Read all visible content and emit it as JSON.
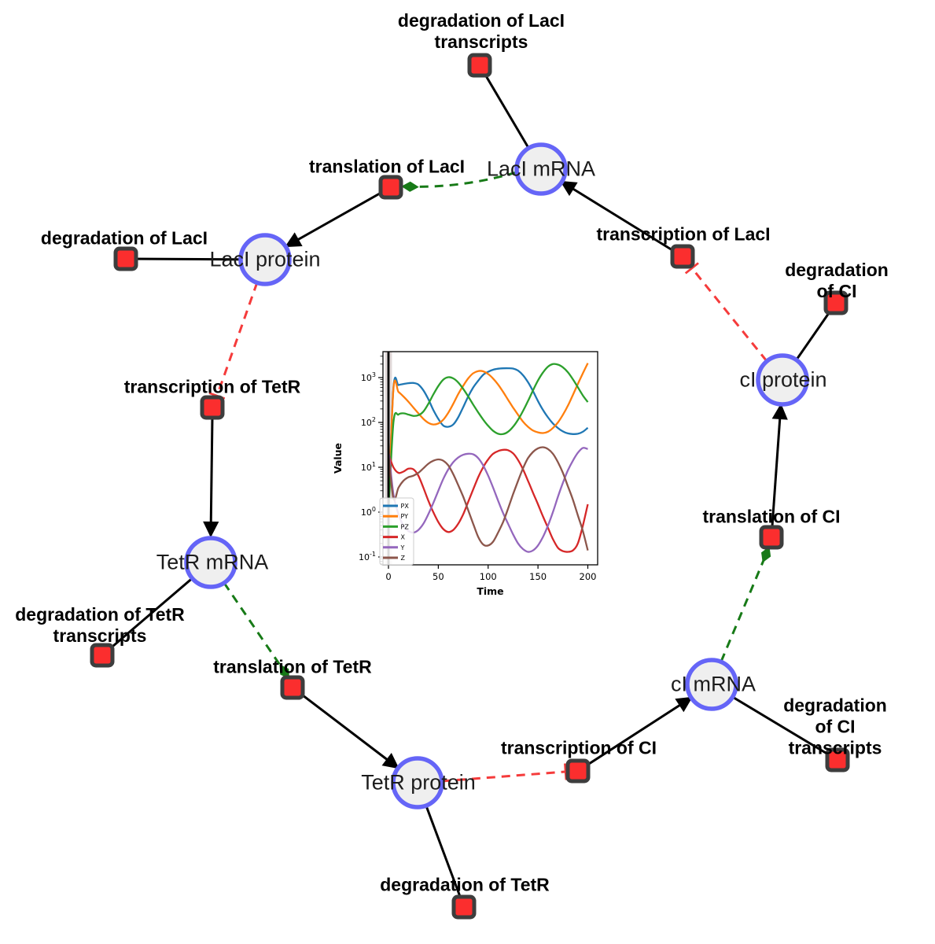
{
  "diagram": {
    "species": [
      {
        "label": "LacI mRNA"
      },
      {
        "label": "LacI protein"
      },
      {
        "label": "TetR mRNA"
      },
      {
        "label": "TetR protein"
      },
      {
        "label": "cI mRNA"
      },
      {
        "label": "cI protein"
      }
    ],
    "reactions": [
      {
        "label": "degradation of LacI\ntranscripts"
      },
      {
        "label": "translation of LacI"
      },
      {
        "label": "transcription of LacI"
      },
      {
        "label": "degradation of LacI"
      },
      {
        "label": "transcription of TetR"
      },
      {
        "label": "degradation of CI"
      },
      {
        "label": "degradation of TetR\ntranscripts"
      },
      {
        "label": "translation of TetR"
      },
      {
        "label": "translation of CI"
      },
      {
        "label": "transcription of CI"
      },
      {
        "label": "degradation of TetR"
      },
      {
        "label": "degradation of CI\ntranscripts"
      }
    ]
  },
  "colors": {
    "species_fill": "#efefef",
    "species_border": "#6565f7",
    "reaction_fill": "#fb2e2e",
    "reaction_border": "#3d3d3d",
    "edge_black": "#000000",
    "modifier_green": "#177a17",
    "inhibition_red": "#f53b3b"
  },
  "chart_data": {
    "type": "line",
    "title": "",
    "xlabel": "Time",
    "ylabel": "Value",
    "x_range": [
      0,
      200
    ],
    "x_ticks": [
      0,
      50,
      100,
      150,
      200
    ],
    "y_scale": "log",
    "y_tick_exponents": [
      -1,
      0,
      1,
      2,
      3
    ],
    "ylim_exponents": [
      -1.17,
      3.58
    ],
    "grid": false,
    "legend_position": "lower left",
    "annotations": {
      "vline_x": 0
    },
    "x": [
      0,
      5,
      10,
      15,
      20,
      25,
      30,
      35,
      40,
      45,
      50,
      55,
      60,
      65,
      70,
      75,
      80,
      85,
      90,
      95,
      100,
      105,
      110,
      115,
      120,
      125,
      130,
      135,
      140,
      145,
      150,
      155,
      160,
      165,
      170,
      175,
      180,
      185,
      190,
      195,
      200
    ],
    "series": [
      {
        "name": "PX",
        "color": "#1f77b4",
        "values": [
          1,
          600,
          680,
          720,
          750,
          760,
          700,
          520,
          330,
          190,
          120,
          85,
          80,
          90,
          130,
          220,
          380,
          600,
          850,
          1150,
          1350,
          1500,
          1580,
          1610,
          1620,
          1590,
          1430,
          1130,
          790,
          500,
          300,
          190,
          130,
          95,
          75,
          63,
          57,
          55,
          56,
          62,
          76
        ]
      },
      {
        "name": "PY",
        "color": "#ff7f0e",
        "values": [
          1,
          560,
          480,
          380,
          290,
          215,
          160,
          120,
          98,
          90,
          95,
          115,
          165,
          260,
          430,
          660,
          960,
          1250,
          1400,
          1380,
          1200,
          950,
          700,
          480,
          320,
          215,
          148,
          104,
          80,
          66,
          60,
          58,
          62,
          75,
          100,
          148,
          235,
          410,
          720,
          1250,
          2100
        ]
      },
      {
        "name": "PZ",
        "color": "#2ca02c",
        "values": [
          1,
          100,
          150,
          160,
          150,
          140,
          145,
          175,
          260,
          420,
          650,
          900,
          1020,
          960,
          780,
          560,
          380,
          250,
          168,
          116,
          84,
          65,
          56,
          55,
          62,
          80,
          115,
          180,
          300,
          520,
          860,
          1300,
          1750,
          2000,
          1950,
          1700,
          1320,
          920,
          610,
          400,
          285
        ]
      },
      {
        "name": "X",
        "color": "#d62728",
        "values": [
          20,
          10,
          7.5,
          8,
          9.3,
          9,
          6.5,
          3.5,
          1.8,
          1,
          0.6,
          0.42,
          0.36,
          0.4,
          0.55,
          0.9,
          1.7,
          3.2,
          6,
          10,
          15,
          20,
          23,
          24.5,
          24,
          20.5,
          14.5,
          9,
          5,
          2.7,
          1.5,
          0.8,
          0.45,
          0.25,
          0.16,
          0.135,
          0.13,
          0.14,
          0.2,
          0.5,
          1.5
        ]
      },
      {
        "name": "Y",
        "color": "#9467bd",
        "values": [
          25,
          2.5,
          0.9,
          0.5,
          0.38,
          0.35,
          0.4,
          0.55,
          0.9,
          1.6,
          3,
          5.5,
          9,
          13,
          16.5,
          19,
          20,
          19.5,
          16,
          11,
          6.5,
          3.5,
          1.8,
          0.95,
          0.55,
          0.32,
          0.2,
          0.15,
          0.13,
          0.14,
          0.18,
          0.28,
          0.5,
          1,
          2.2,
          4.5,
          8.5,
          14,
          21,
          27,
          25.5
        ]
      },
      {
        "name": "Z",
        "color": "#8c564b",
        "values": [
          20,
          2,
          3.5,
          5,
          6,
          6.5,
          7.5,
          9.5,
          12,
          14,
          15,
          14,
          11,
          7,
          4,
          2.2,
          1.1,
          0.55,
          0.28,
          0.19,
          0.18,
          0.22,
          0.35,
          0.6,
          1.2,
          2.5,
          5,
          9.5,
          16,
          22,
          26.5,
          28,
          25.5,
          20,
          13,
          7.5,
          3.8,
          1.9,
          0.85,
          0.38,
          0.14
        ]
      }
    ]
  }
}
